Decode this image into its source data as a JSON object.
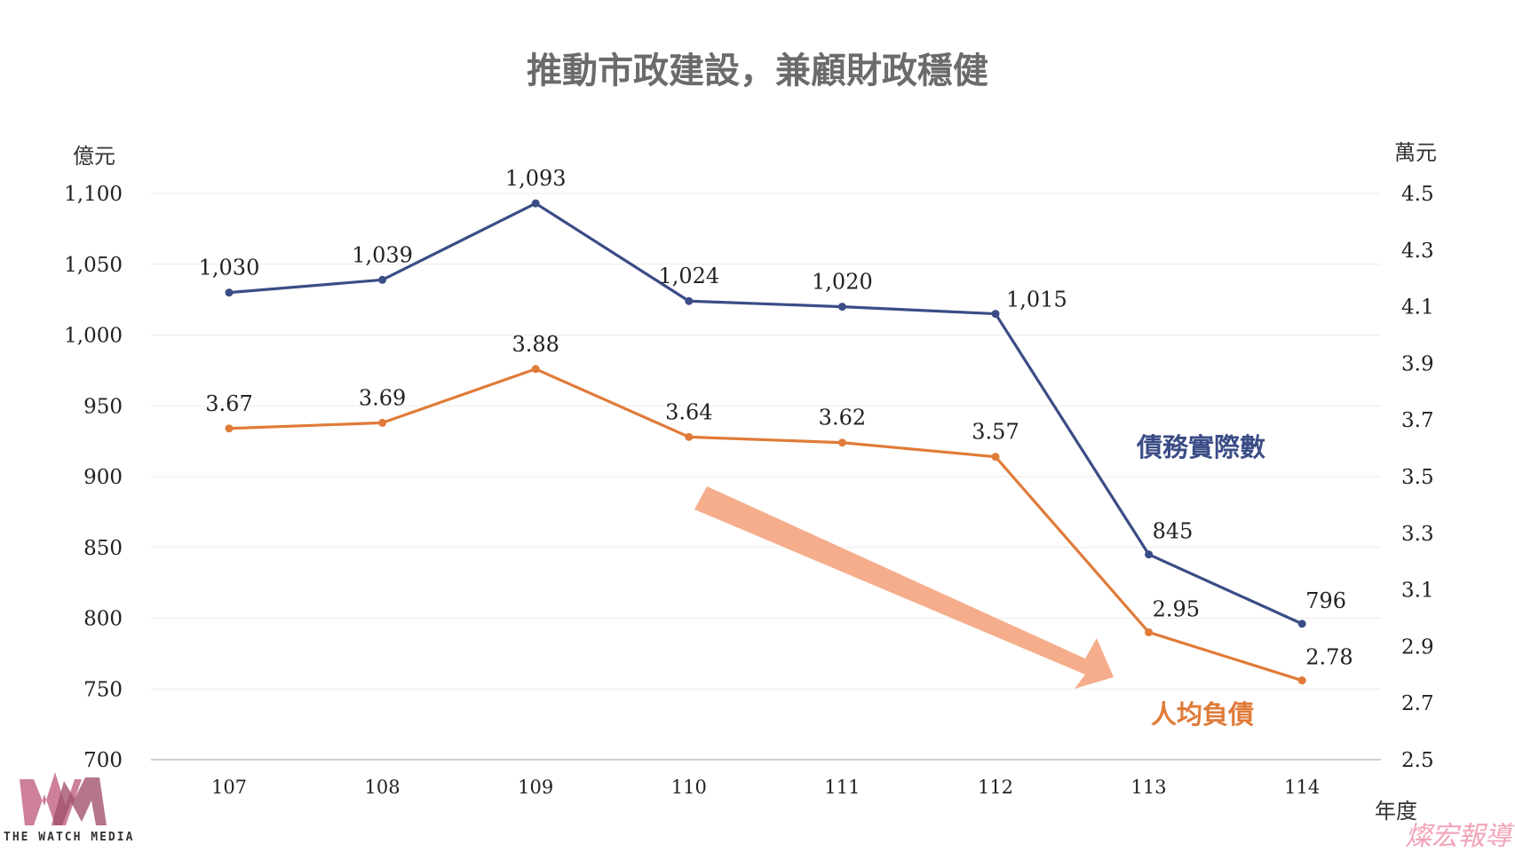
{
  "chart_data": {
    "type": "line",
    "title": "推動市政建設，兼顧財政穩健",
    "x": [
      "107",
      "108",
      "109",
      "110",
      "111",
      "112",
      "113",
      "114"
    ],
    "xlabel": "年度",
    "ylabel_left": "億元",
    "ylabel_right": "萬元",
    "ylim_left": [
      700,
      1100
    ],
    "ylim_right": [
      2.5,
      4.5
    ],
    "yticks_left": [
      "700",
      "750",
      "800",
      "850",
      "900",
      "950",
      "1,000",
      "1,050",
      "1,100"
    ],
    "yticks_right": [
      "2.5",
      "2.7",
      "2.9",
      "3.1",
      "3.3",
      "3.5",
      "3.7",
      "3.9",
      "4.1",
      "4.3",
      "4.5"
    ],
    "grid": true,
    "series": [
      {
        "name": "債務實際數",
        "axis": "left",
        "color": "#3b4d86",
        "values": [
          1030,
          1039,
          1093,
          1024,
          1020,
          1015,
          845,
          796
        ],
        "labels": [
          "1,030",
          "1,039",
          "1,093",
          "1,024",
          "1,020",
          "1,015",
          "845",
          "796"
        ]
      },
      {
        "name": "人均負債",
        "axis": "right",
        "color": "#e07b39",
        "values": [
          3.67,
          3.69,
          3.88,
          3.64,
          3.62,
          3.57,
          2.95,
          2.78
        ],
        "labels": [
          "3.67",
          "3.69",
          "3.88",
          "3.64",
          "3.62",
          "3.57",
          "2.95",
          "2.78"
        ]
      }
    ],
    "annotation": {
      "type": "down-trend-arrow",
      "color": "#f4a47e"
    }
  },
  "branding": {
    "logo_text": "THE WATCH MEDIA",
    "stamp_text": "燦宏報導"
  }
}
